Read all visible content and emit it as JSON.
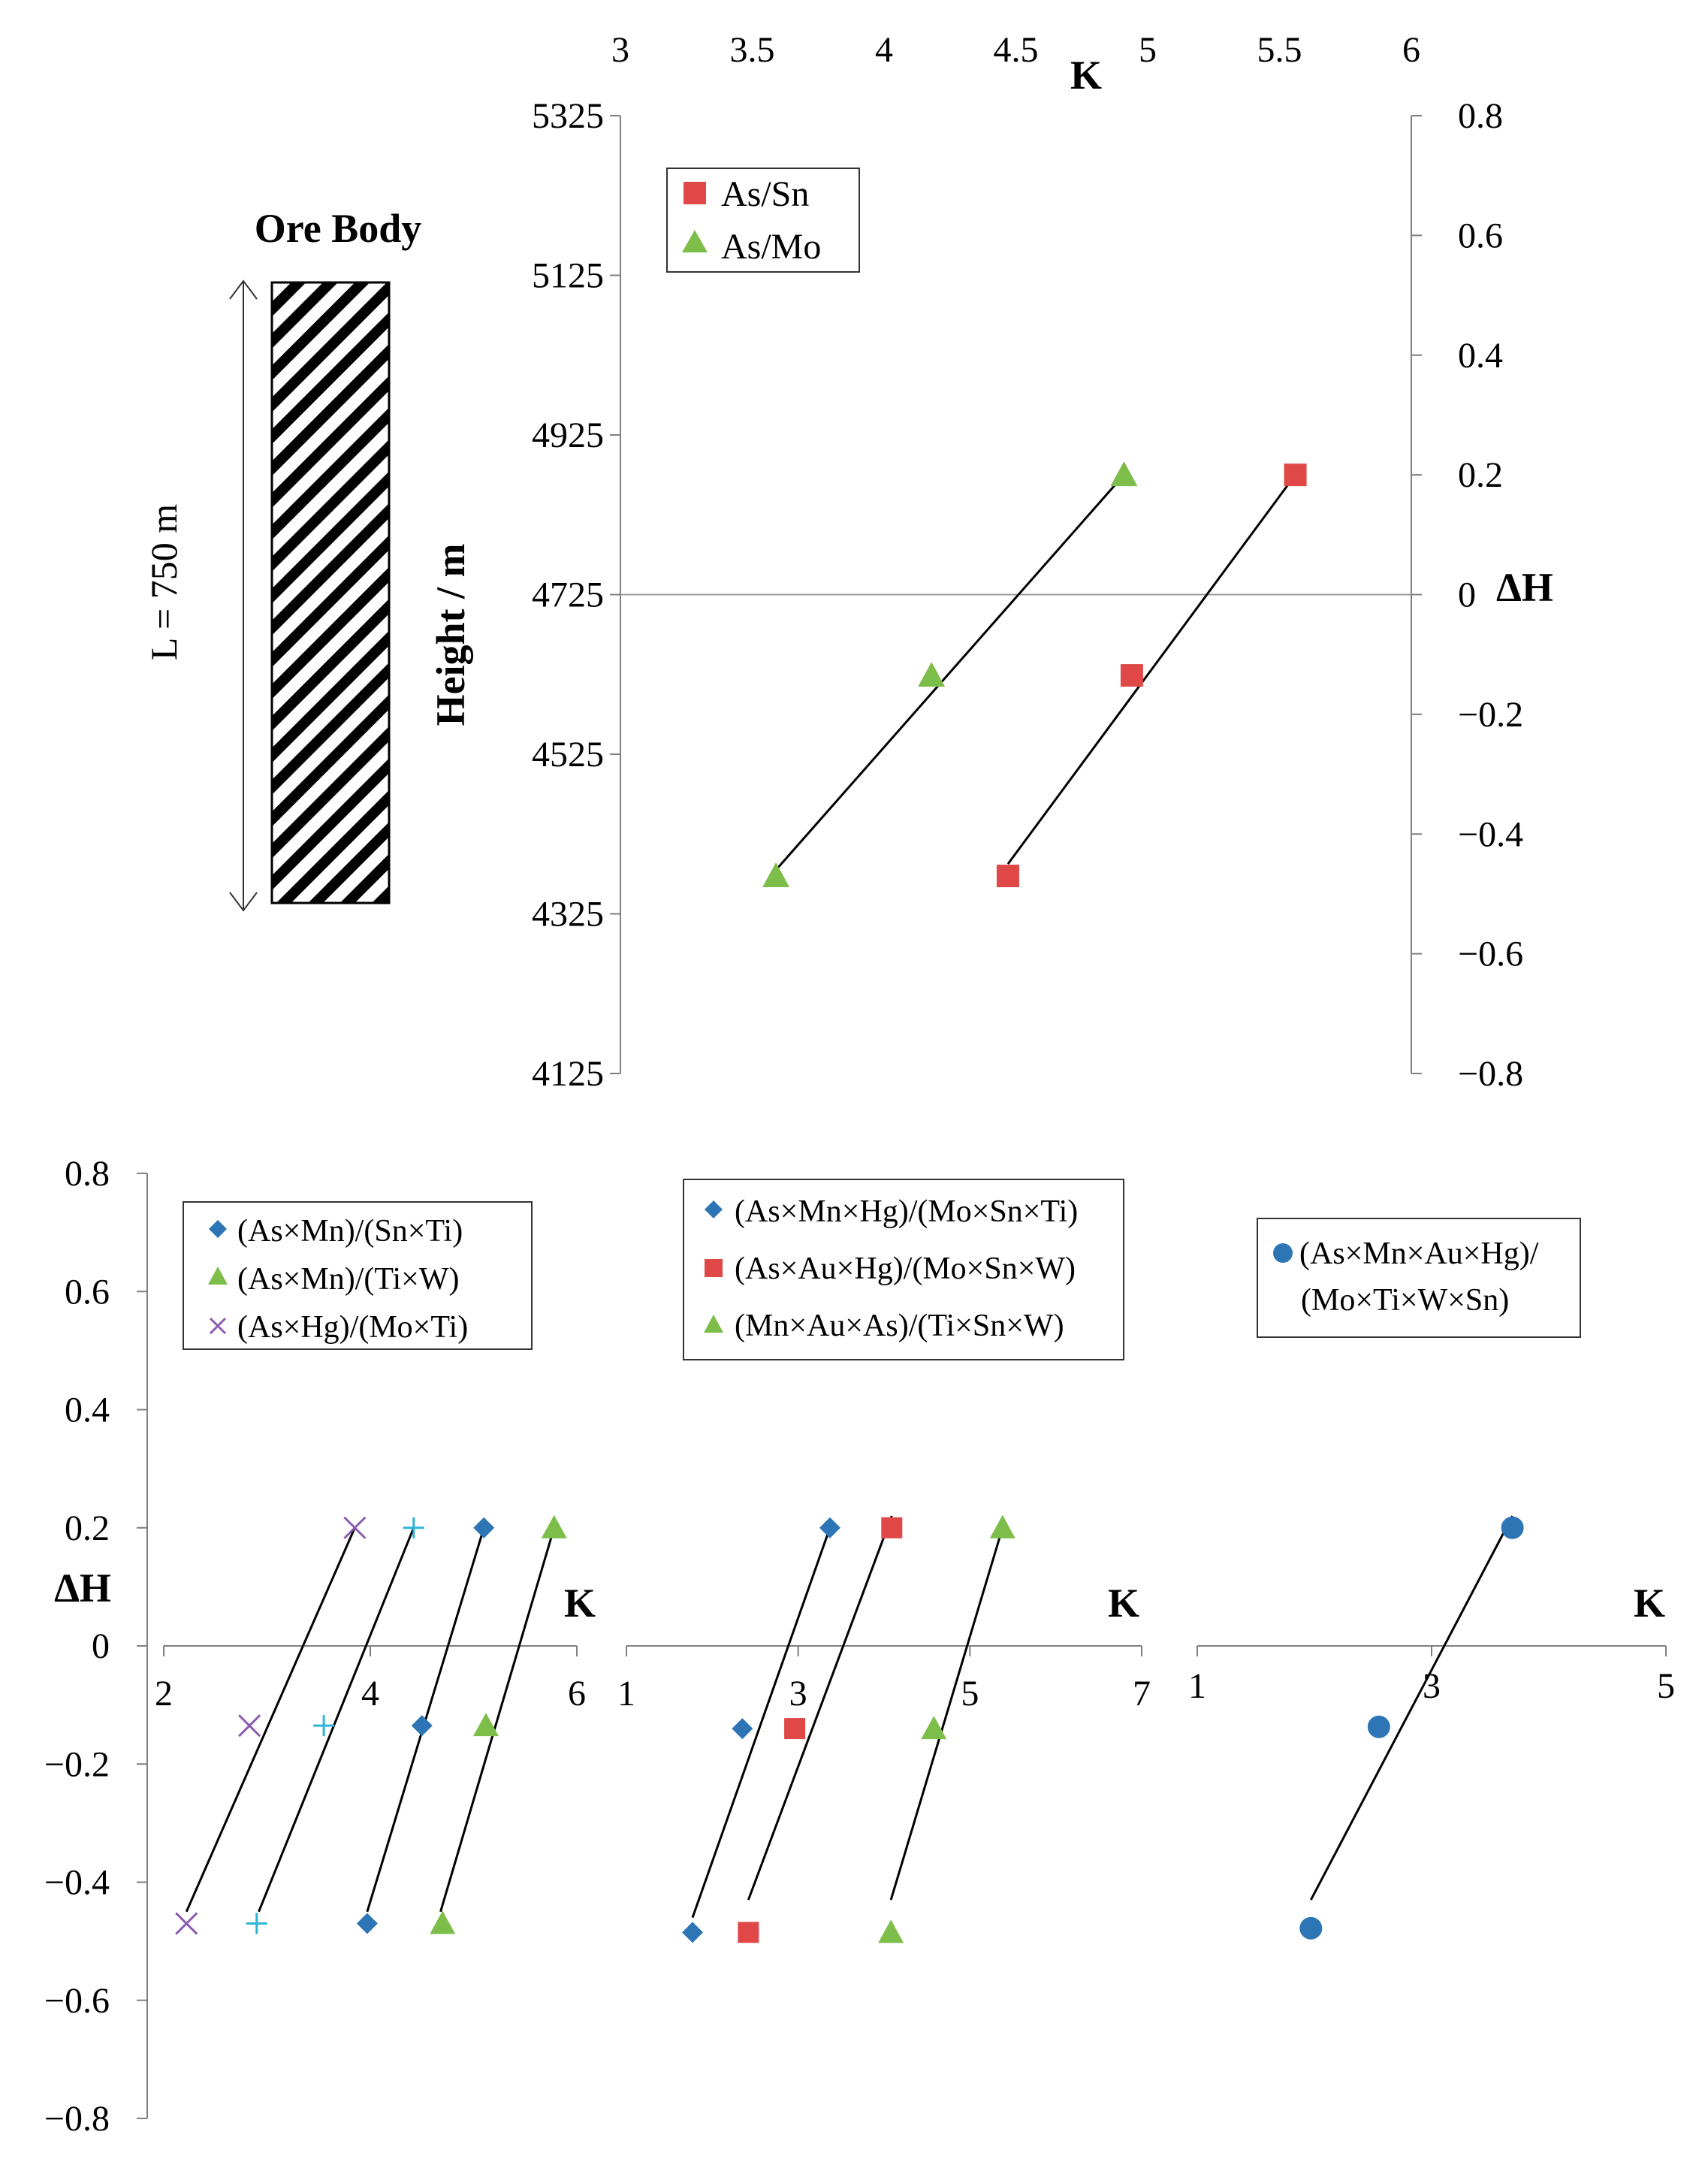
{
  "figure": {
    "ore_body_label": "Ore Body",
    "length_label": "L = 750 m"
  },
  "colors": {
    "blue": "#2E75B6",
    "red": "#E04848",
    "green": "#7DBE4B",
    "purple": "#8A5BAE",
    "cyan": "#2FB3D6",
    "axis": "#7f7f7f",
    "fit_line": "#000000"
  },
  "chart_data": [
    {
      "id": "top",
      "type": "scatter",
      "title": "",
      "xlabel": "K",
      "ylabel_left": "Height / m",
      "ylabel_right": "ΔH",
      "xlim": [
        3,
        6
      ],
      "xticks": [
        "3",
        "3.5",
        "4",
        "4.5",
        "5",
        "5.5",
        "6"
      ],
      "ylim_left": [
        4125,
        5325
      ],
      "yticks_left": [
        "5325",
        "5125",
        "4925",
        "4725",
        "4525",
        "4325",
        "4125"
      ],
      "ylim_right": [
        -0.8,
        0.8
      ],
      "yticks_right": [
        "0.8",
        "0.6",
        "0.4",
        "0.2",
        "0",
        "−0.2",
        "−0.4",
        "−0.6",
        "−0.8"
      ],
      "series": [
        {
          "name": "As/Sn",
          "marker": "square",
          "color": "red",
          "points": [
            [
              4.47,
              -0.47
            ],
            [
              4.94,
              -0.135
            ],
            [
              5.56,
              0.2
            ]
          ],
          "fit": [
            [
              4.47,
              -0.45
            ],
            [
              5.56,
              0.2
            ]
          ]
        },
        {
          "name": "As/Mo",
          "marker": "triangle",
          "color": "green",
          "points": [
            [
              3.59,
              -0.47
            ],
            [
              4.18,
              -0.135
            ],
            [
              4.91,
              0.2
            ]
          ],
          "fit": [
            [
              3.59,
              -0.46
            ],
            [
              4.91,
              0.2
            ]
          ]
        }
      ]
    },
    {
      "id": "bottom-left",
      "type": "scatter",
      "xlabel": "K",
      "ylabel": "ΔH",
      "xlim": [
        2,
        6
      ],
      "xticks": [
        "2",
        "4",
        "6"
      ],
      "ylim": [
        -0.8,
        0.8
      ],
      "yticks": [
        "0.8",
        "0.6",
        "0.4",
        "0.2",
        "0",
        "−0.2",
        "−0.4",
        "−0.6",
        "−0.8"
      ],
      "series": [
        {
          "name": "(As×Mn)/(Sn×Ti)",
          "marker": "diamond",
          "color": "blue",
          "points": [
            [
              3.97,
              -0.47
            ],
            [
              4.5,
              -0.135
            ],
            [
              5.1,
              0.2
            ]
          ],
          "fit": [
            [
              3.97,
              -0.45
            ],
            [
              5.1,
              0.2
            ]
          ]
        },
        {
          "name": "(As×Mn)/(Ti×W)",
          "marker": "triangle",
          "color": "green",
          "points": [
            [
              4.7,
              -0.47
            ],
            [
              5.12,
              -0.135
            ],
            [
              5.78,
              0.2
            ]
          ],
          "fit": [
            [
              4.68,
              -0.45
            ],
            [
              5.78,
              0.2
            ]
          ]
        },
        {
          "name": "(As×Hg)/(Mo×Ti)",
          "marker": "x",
          "color": "purple",
          "points": [
            [
              2.22,
              -0.47
            ],
            [
              2.83,
              -0.135
            ],
            [
              3.85,
              0.2
            ]
          ],
          "fit": [
            [
              2.22,
              -0.45
            ],
            [
              3.85,
              0.2
            ]
          ]
        },
        {
          "name": "",
          "marker": "plus",
          "color": "cyan",
          "show_in_legend": false,
          "points": [
            [
              2.9,
              -0.47
            ],
            [
              3.55,
              -0.135
            ],
            [
              4.42,
              0.2
            ]
          ],
          "fit": [
            [
              2.92,
              -0.45
            ],
            [
              4.42,
              0.2
            ]
          ]
        }
      ]
    },
    {
      "id": "bottom-middle",
      "type": "scatter",
      "xlabel": "K",
      "xlim": [
        1,
        7
      ],
      "xticks": [
        "1",
        "3",
        "5",
        "7"
      ],
      "ylim": [
        -0.8,
        0.8
      ],
      "series": [
        {
          "name": "(As×Mn×Hg)/(Mo×Sn×Ti)",
          "marker": "diamond",
          "color": "blue",
          "points": [
            [
              1.77,
              -0.485
            ],
            [
              2.35,
              -0.14
            ],
            [
              3.37,
              0.2
            ]
          ],
          "fit": [
            [
              1.77,
              -0.46
            ],
            [
              3.37,
              0.2
            ]
          ]
        },
        {
          "name": "(As×Au×Hg)/(Mo×Sn×W)",
          "marker": "square",
          "color": "red",
          "points": [
            [
              2.42,
              -0.485
            ],
            [
              2.96,
              -0.14
            ],
            [
              4.09,
              0.2
            ]
          ],
          "fit": [
            [
              2.42,
              -0.43
            ],
            [
              4.09,
              0.22
            ]
          ]
        },
        {
          "name": "(Mn×Au×As)/(Ti×Sn×W)",
          "marker": "triangle",
          "color": "green",
          "points": [
            [
              4.08,
              -0.485
            ],
            [
              4.58,
              -0.14
            ],
            [
              5.38,
              0.2
            ]
          ],
          "fit": [
            [
              4.08,
              -0.43
            ],
            [
              5.38,
              0.2
            ]
          ]
        }
      ]
    },
    {
      "id": "bottom-right",
      "type": "scatter",
      "xlabel": "K",
      "xlim": [
        1,
        5
      ],
      "xticks": [
        "1",
        "3",
        "5"
      ],
      "ylim": [
        -0.8,
        0.8
      ],
      "series": [
        {
          "name": "(As×Mn×Au×Hg)/ (Mo×Ti×W×Sn)",
          "marker": "circle",
          "color": "blue",
          "points": [
            [
              1.97,
              -0.478
            ],
            [
              2.55,
              -0.137
            ],
            [
              3.69,
              0.2
            ]
          ],
          "fit": [
            [
              1.97,
              -0.43
            ],
            [
              3.69,
              0.22
            ]
          ]
        }
      ]
    }
  ],
  "legends": {
    "top": [
      "As/Sn",
      "As/Mo"
    ],
    "bottom_left": [
      "(As×Mn)/(Sn×Ti)",
      "(As×Mn)/(Ti×W)",
      "(As×Hg)/(Mo×Ti)"
    ],
    "bottom_middle": [
      "(As×Mn×Hg)/(Mo×Sn×Ti)",
      "(As×Au×Hg)/(Mo×Sn×W)",
      "(Mn×Au×As)/(Ti×Sn×W)"
    ],
    "bottom_right": [
      "(As×Mn×Au×Hg)/",
      "(Mo×Ti×W×Sn)"
    ]
  }
}
